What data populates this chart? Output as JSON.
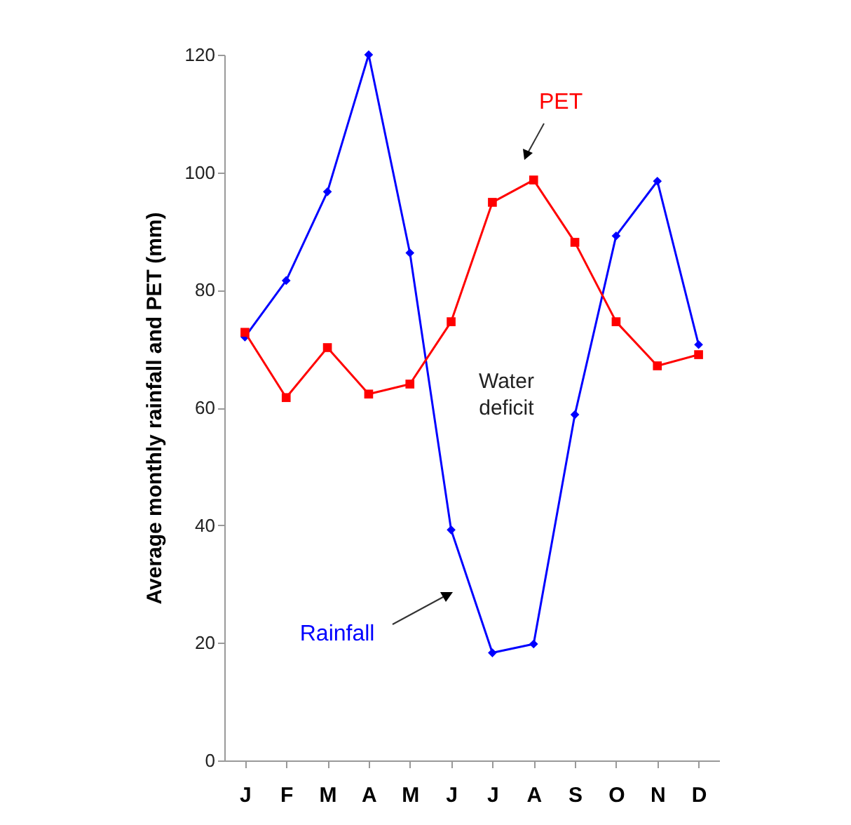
{
  "chart_data": {
    "type": "line",
    "ylabel": "Average monthly rainfall and PET (mm)",
    "categories": [
      "J",
      "F",
      "M",
      "A",
      "M",
      "J",
      "J",
      "A",
      "S",
      "O",
      "N",
      "D"
    ],
    "series": [
      {
        "name": "Rainfall",
        "color": "#0000ff",
        "marker": "diamond",
        "values": [
          72,
          81.6,
          96.7,
          120,
          86.3,
          39.2,
          18.3,
          19.8,
          58.8,
          89.2,
          98.5,
          70.7
        ]
      },
      {
        "name": "PET",
        "color": "#ff0000",
        "marker": "square",
        "values": [
          72.8,
          61.7,
          70.2,
          62.3,
          64,
          74.6,
          94.9,
          98.7,
          88.1,
          74.6,
          67.1,
          69
        ]
      }
    ],
    "annotations": [
      "Water deficit"
    ],
    "ylim": [
      0,
      120
    ],
    "yticks": [
      0,
      20,
      40,
      60,
      80,
      100,
      120
    ],
    "grid": false,
    "line_style": "solid"
  }
}
